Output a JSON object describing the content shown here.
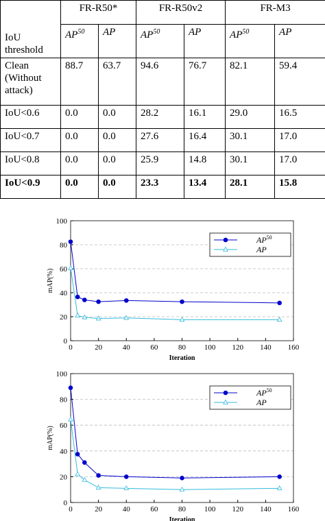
{
  "table": {
    "corner": "IoU threshold",
    "groups": [
      "FR-R50*",
      "FR-R50v2",
      "FR-M3"
    ],
    "subheaders": [
      {
        "text": "AP",
        "sup": "50"
      },
      {
        "text": "AP"
      },
      {
        "text": "AP",
        "sup": "50"
      },
      {
        "text": "AP"
      },
      {
        "text": "AP",
        "sup": "50"
      },
      {
        "text": "AP"
      }
    ],
    "rows": [
      {
        "label": "Clean (Without attack)",
        "values": [
          "88.7",
          "63.7",
          "94.6",
          "76.7",
          "82.1",
          "59.4"
        ]
      },
      {
        "label": "IoU<0.6",
        "values": [
          "0.0",
          "0.0",
          "28.2",
          "16.1",
          "29.0",
          "16.5"
        ]
      },
      {
        "label": "IoU<0.7",
        "values": [
          "0.0",
          "0.0",
          "27.6",
          "16.4",
          "30.1",
          "17.0"
        ]
      },
      {
        "label": "IoU<0.8",
        "values": [
          "0.0",
          "0.0",
          "25.9",
          "14.8",
          "30.1",
          "17.0"
        ]
      },
      {
        "label": "IoU<0.9",
        "values": [
          "0.0",
          "0.0",
          "23.3",
          "13.4",
          "28.1",
          "15.8"
        ],
        "bold": true
      }
    ]
  },
  "chart_data": [
    {
      "type": "line",
      "x_label": "Iteration",
      "y_label": "mAP(%)",
      "x": [
        0,
        5,
        10,
        20,
        40,
        80,
        150
      ],
      "series": [
        {
          "name": "AP",
          "name_sup": "50",
          "color": "#0000cc",
          "marker": "circle",
          "values": [
            82.5,
            36.5,
            34,
            32.5,
            33.5,
            32.5,
            31.5
          ]
        },
        {
          "name": "AP",
          "color": "#33bbdd",
          "marker": "triangle",
          "values": [
            60.5,
            21,
            19.5,
            18.5,
            19,
            17.5,
            17.5
          ]
        }
      ],
      "xlim": [
        0,
        160
      ],
      "xticks": [
        0,
        20,
        40,
        60,
        80,
        100,
        120,
        140,
        160
      ],
      "ylim": [
        0,
        100
      ],
      "yticks": [
        0,
        20,
        40,
        60,
        80,
        100
      ],
      "grid": true,
      "legend": "upper-right"
    },
    {
      "type": "line",
      "x_label": "Iteration",
      "y_label": "mAP(%)",
      "x": [
        0,
        5,
        10,
        20,
        40,
        80,
        150
      ],
      "series": [
        {
          "name": "AP",
          "name_sup": "50",
          "color": "#0000cc",
          "marker": "circle",
          "values": [
            89,
            37.5,
            31,
            21,
            20,
            19,
            20
          ]
        },
        {
          "name": "AP",
          "color": "#33bbdd",
          "marker": "triangle",
          "values": [
            64.5,
            22,
            17.5,
            11.5,
            11,
            10,
            11
          ]
        }
      ],
      "xlim": [
        0,
        160
      ],
      "xticks": [
        0,
        20,
        40,
        60,
        80,
        100,
        120,
        140,
        160
      ],
      "ylim": [
        0,
        100
      ],
      "yticks": [
        0,
        20,
        40,
        60,
        80,
        100
      ],
      "grid": true,
      "legend": "upper-right"
    }
  ]
}
